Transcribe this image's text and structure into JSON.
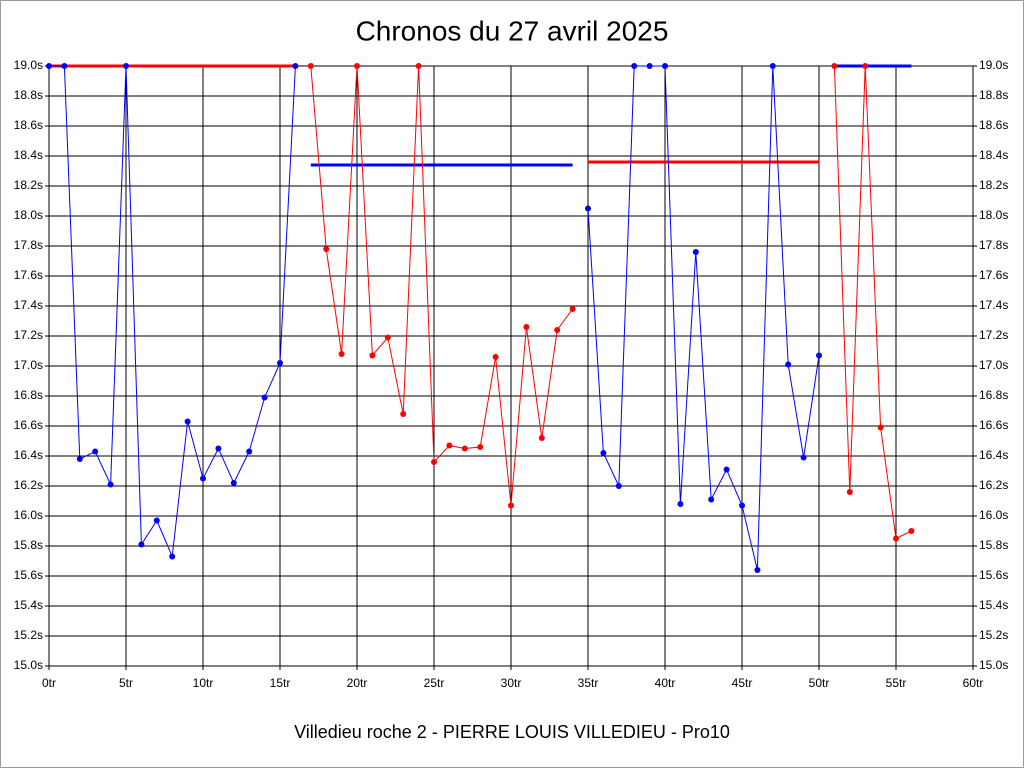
{
  "chart_data": {
    "type": "line",
    "title": "Chronos du 27 avril 2025",
    "x_label": "Villedieu roche 2 - PIERRE LOUIS VILLEDIEU - Pro10",
    "xlim": [
      0,
      60
    ],
    "ylim": [
      15.0,
      19.0
    ],
    "grid": true,
    "xticks": [
      {
        "value": 0,
        "label": "0tr"
      },
      {
        "value": 5,
        "label": "5tr"
      },
      {
        "value": 10,
        "label": "10tr"
      },
      {
        "value": 15,
        "label": "15tr"
      },
      {
        "value": 20,
        "label": "20tr"
      },
      {
        "value": 25,
        "label": "25tr"
      },
      {
        "value": 30,
        "label": "30tr"
      },
      {
        "value": 35,
        "label": "35tr"
      },
      {
        "value": 40,
        "label": "40tr"
      },
      {
        "value": 45,
        "label": "45tr"
      },
      {
        "value": 50,
        "label": "50tr"
      },
      {
        "value": 55,
        "label": "55tr"
      },
      {
        "value": 60,
        "label": "60tr"
      }
    ],
    "yticks": [
      {
        "value": 15.0,
        "label": "15.0s"
      },
      {
        "value": 15.2,
        "label": "15.2s"
      },
      {
        "value": 15.4,
        "label": "15.4s"
      },
      {
        "value": 15.6,
        "label": "15.6s"
      },
      {
        "value": 15.8,
        "label": "15.8s"
      },
      {
        "value": 16.0,
        "label": "16.0s"
      },
      {
        "value": 16.2,
        "label": "16.2s"
      },
      {
        "value": 16.4,
        "label": "16.4s"
      },
      {
        "value": 16.6,
        "label": "16.6s"
      },
      {
        "value": 16.8,
        "label": "16.8s"
      },
      {
        "value": 17.0,
        "label": "17.0s"
      },
      {
        "value": 17.2,
        "label": "17.2s"
      },
      {
        "value": 17.4,
        "label": "17.4s"
      },
      {
        "value": 17.6,
        "label": "17.6s"
      },
      {
        "value": 17.8,
        "label": "17.8s"
      },
      {
        "value": 18.0,
        "label": "18.0s"
      },
      {
        "value": 18.2,
        "label": "18.2s"
      },
      {
        "value": 18.4,
        "label": "18.4s"
      },
      {
        "value": 18.6,
        "label": "18.6s"
      },
      {
        "value": 18.8,
        "label": "18.8s"
      },
      {
        "value": 19.0,
        "label": "19.0s"
      }
    ],
    "series": [
      {
        "color": "#ff0000",
        "markers": false,
        "x": [
          0,
          16
        ],
        "values": [
          19.0,
          19.0
        ]
      },
      {
        "color": "#0000ff",
        "markers": false,
        "x": [
          17,
          34
        ],
        "values": [
          18.34,
          18.34
        ]
      },
      {
        "color": "#ff0000",
        "markers": false,
        "x": [
          35,
          50
        ],
        "values": [
          18.36,
          18.36
        ]
      },
      {
        "color": "#0000ff",
        "markers": false,
        "x": [
          51,
          56
        ],
        "values": [
          19.0,
          19.0
        ]
      },
      {
        "color": "#0000ff",
        "markers": true,
        "x": [
          0,
          1,
          2,
          3,
          4,
          5,
          6,
          7,
          8,
          9,
          10,
          11,
          12,
          13,
          14,
          15,
          16
        ],
        "values": [
          19.0,
          19.0,
          16.38,
          16.43,
          16.21,
          19.0,
          15.81,
          15.97,
          15.73,
          16.63,
          16.25,
          16.45,
          16.22,
          16.43,
          16.79,
          17.02,
          19.0
        ]
      },
      {
        "color": "#ff0000",
        "markers": true,
        "x": [
          17,
          18,
          19,
          20,
          21,
          22,
          23,
          24,
          25,
          26,
          27,
          28,
          29,
          30,
          31,
          32,
          33,
          34
        ],
        "values": [
          19.0,
          17.78,
          17.08,
          19.0,
          17.07,
          17.19,
          16.68,
          19.0,
          16.36,
          16.47,
          16.45,
          16.46,
          17.06,
          16.07,
          17.26,
          16.52,
          17.24,
          17.38
        ]
      },
      {
        "color": "#0000ff",
        "markers": true,
        "x": [
          35,
          36,
          37,
          38,
          39,
          40,
          41,
          42,
          43,
          44,
          45,
          46,
          47,
          48,
          49,
          50
        ],
        "values": [
          18.05,
          16.42,
          16.2,
          19.0,
          19.0,
          19.0,
          16.08,
          17.76,
          16.11,
          16.31,
          16.07,
          15.64,
          19.0,
          17.01,
          16.39,
          17.07
        ]
      },
      {
        "color": "#ff0000",
        "markers": true,
        "x": [
          51,
          52,
          53,
          54,
          55,
          56
        ],
        "values": [
          19.0,
          16.16,
          19.0,
          16.59,
          15.85,
          15.9
        ]
      }
    ]
  }
}
